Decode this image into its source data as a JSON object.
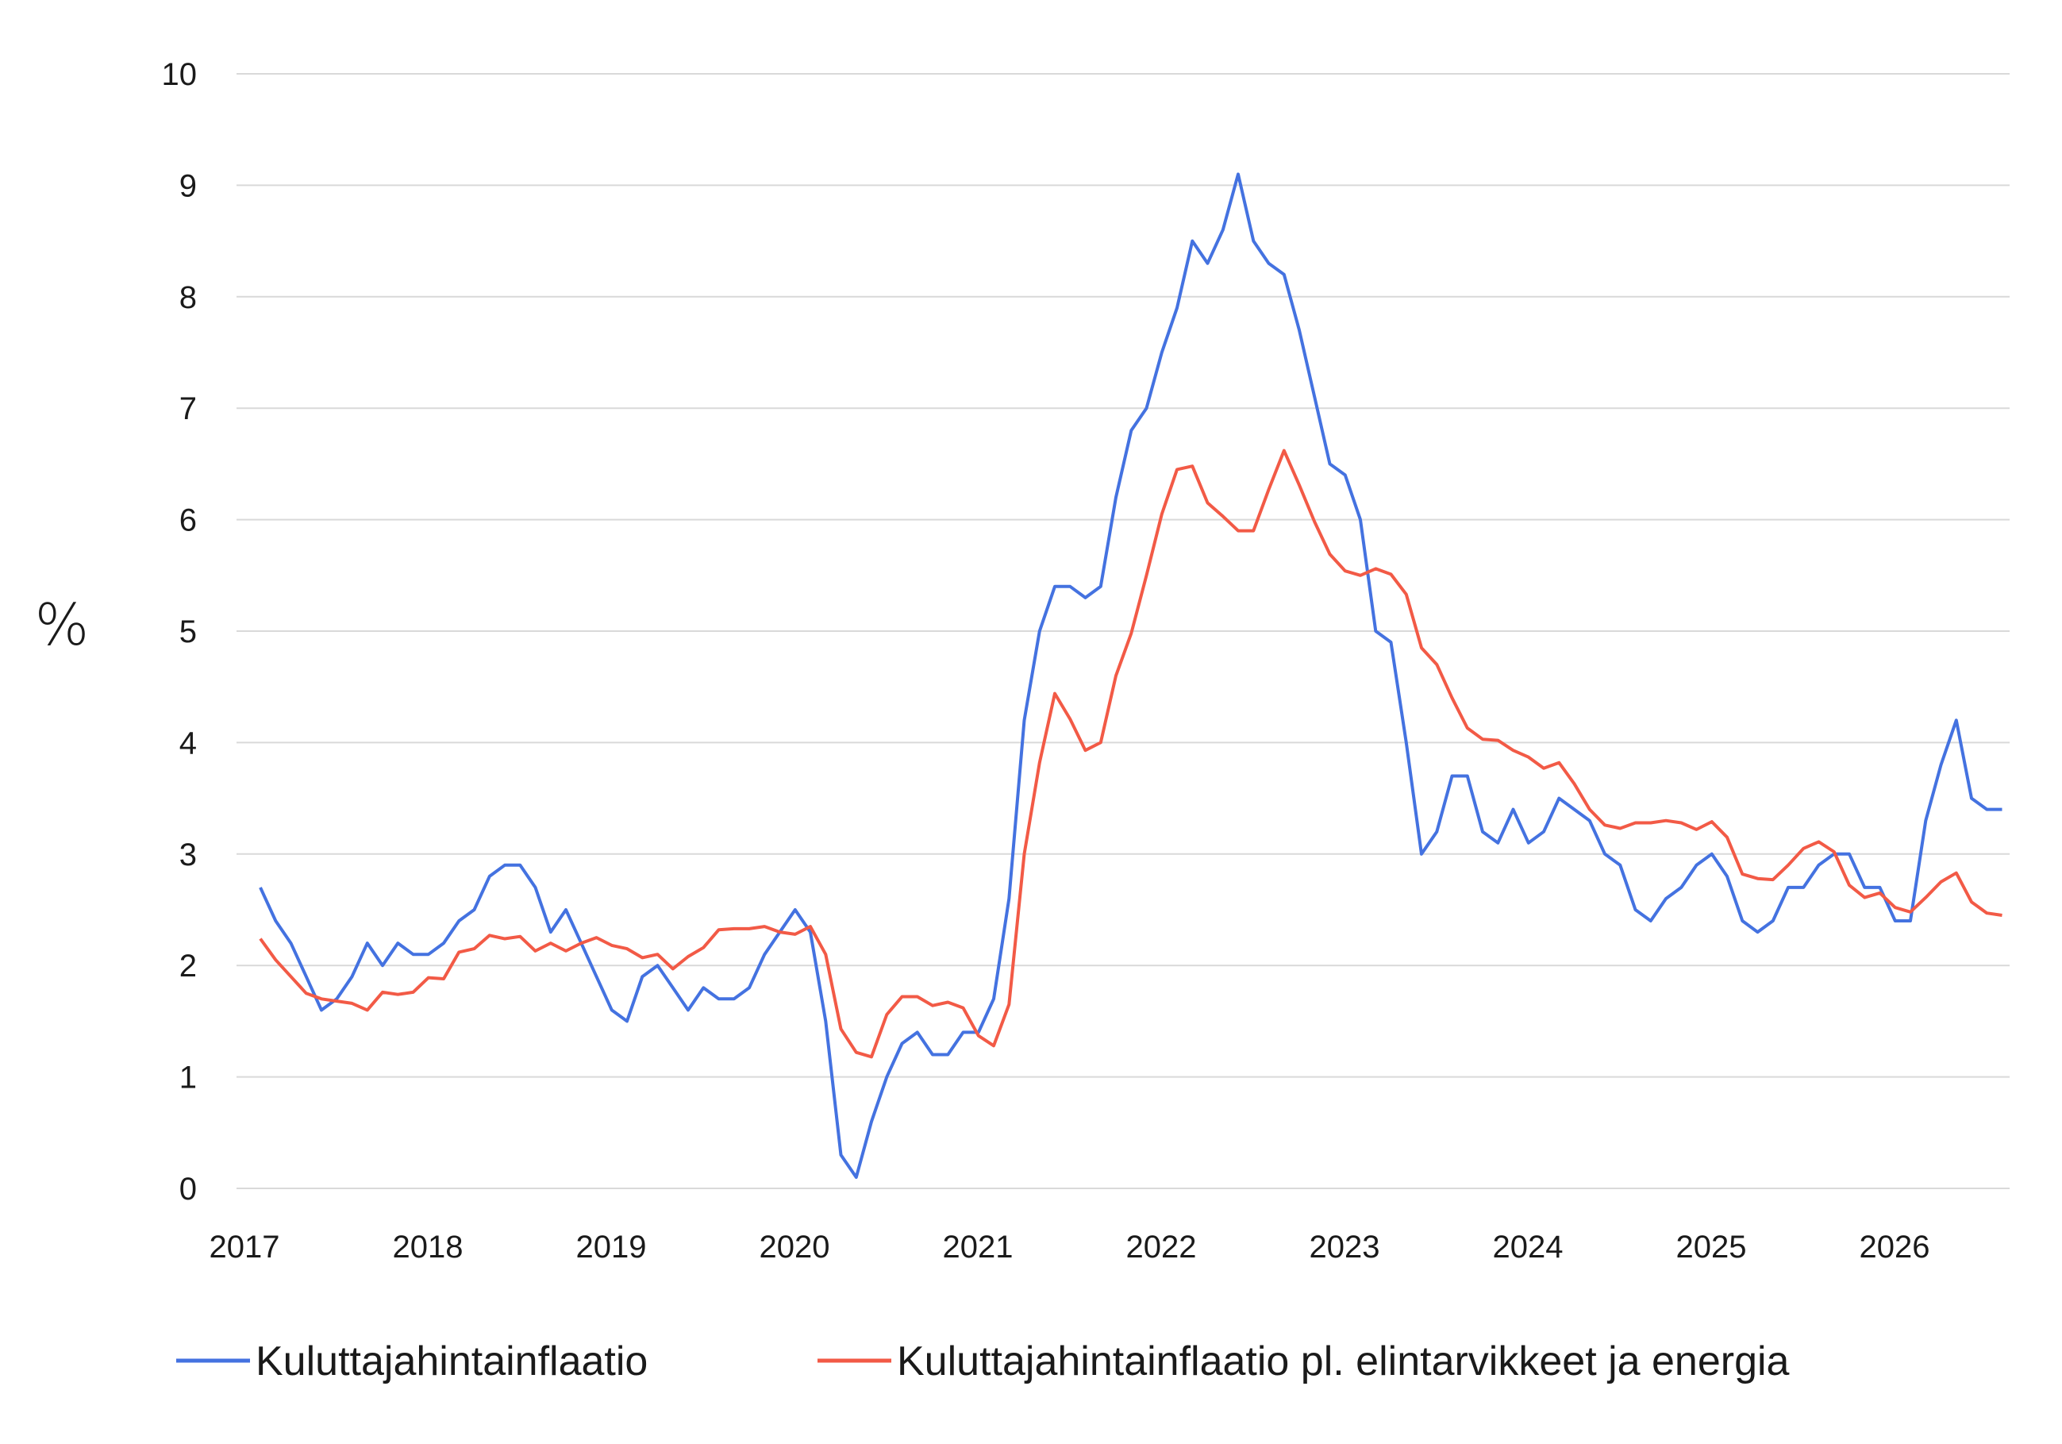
{
  "chart_data": {
    "type": "line",
    "title": "",
    "xlabel": "",
    "ylabel": "%",
    "ylim": [
      0,
      10
    ],
    "yticks": [
      "0",
      "1",
      "2",
      "3",
      "4",
      "5",
      "6",
      "7",
      "8",
      "9",
      "10"
    ],
    "xticks": [
      "2017",
      "2018",
      "2019",
      "2020",
      "2021",
      "2022",
      "2023",
      "2024",
      "2025",
      "2026"
    ],
    "grid": true,
    "legend_position": "bottom",
    "x_start": "2017-01",
    "x_frequency": "monthly",
    "series": [
      {
        "name": "Kuluttajahintainflaatio",
        "color": "#4472E0",
        "values": [
          2.7,
          2.4,
          2.2,
          1.9,
          1.6,
          1.7,
          1.9,
          2.2,
          2.0,
          2.2,
          2.1,
          2.1,
          2.2,
          2.4,
          2.5,
          2.8,
          2.9,
          2.9,
          2.7,
          2.3,
          2.5,
          2.2,
          1.9,
          1.6,
          1.5,
          1.9,
          2.0,
          1.8,
          1.6,
          1.8,
          1.7,
          1.7,
          1.8,
          2.1,
          2.3,
          2.5,
          2.3,
          1.5,
          0.3,
          0.1,
          0.6,
          1.0,
          1.3,
          1.4,
          1.2,
          1.2,
          1.4,
          1.4,
          1.7,
          2.6,
          4.2,
          5.0,
          5.4,
          5.4,
          5.3,
          5.4,
          6.2,
          6.8,
          7.0,
          7.5,
          7.9,
          8.5,
          8.3,
          8.6,
          9.1,
          8.5,
          8.3,
          8.2,
          7.7,
          7.1,
          6.5,
          6.4,
          6.0,
          5.0,
          4.9,
          4.0,
          3.0,
          3.2,
          3.7,
          3.7,
          3.2,
          3.1,
          3.4,
          3.1,
          3.2,
          3.5,
          3.4,
          3.3,
          3.0,
          2.9,
          2.5,
          2.4,
          2.6,
          2.7,
          2.9,
          3.0,
          2.8,
          2.4,
          2.3,
          2.4,
          2.7,
          2.7,
          2.9,
          3.0,
          3.0,
          2.7,
          2.7,
          2.4,
          2.4,
          3.3,
          3.8,
          4.2,
          3.5,
          3.4,
          3.4
        ]
      },
      {
        "name": "Kuluttajahintainflaatio pl. elintarvikkeet ja energia",
        "color": "#F25A46",
        "values": [
          2.24,
          2.05,
          1.9,
          1.75,
          1.7,
          1.68,
          1.66,
          1.6,
          1.76,
          1.74,
          1.76,
          1.89,
          1.88,
          2.12,
          2.15,
          2.27,
          2.24,
          2.26,
          2.13,
          2.2,
          2.13,
          2.2,
          2.25,
          2.18,
          2.15,
          2.07,
          2.1,
          1.97,
          2.08,
          2.16,
          2.32,
          2.33,
          2.33,
          2.35,
          2.3,
          2.28,
          2.35,
          2.1,
          1.43,
          1.22,
          1.18,
          1.56,
          1.72,
          1.72,
          1.64,
          1.67,
          1.62,
          1.37,
          1.28,
          1.65,
          3.0,
          3.82,
          4.44,
          4.21,
          3.93,
          4.0,
          4.6,
          4.98,
          5.5,
          6.05,
          6.45,
          6.48,
          6.15,
          6.03,
          5.9,
          5.9,
          6.27,
          6.62,
          6.31,
          5.98,
          5.69,
          5.54,
          5.5,
          5.56,
          5.51,
          5.33,
          4.85,
          4.7,
          4.4,
          4.13,
          4.03,
          4.02,
          3.93,
          3.87,
          3.77,
          3.82,
          3.63,
          3.4,
          3.26,
          3.23,
          3.28,
          3.28,
          3.3,
          3.28,
          3.22,
          3.29,
          3.15,
          2.82,
          2.78,
          2.77,
          2.9,
          3.05,
          3.11,
          3.02,
          2.72,
          2.61,
          2.65,
          2.52,
          2.48,
          2.61,
          2.75,
          2.83,
          2.57,
          2.47,
          2.45
        ]
      }
    ]
  },
  "legend": {
    "items": [
      {
        "label": "Kuluttajahintainflaatio",
        "color": "#4472E0"
      },
      {
        "label": "Kuluttajahintainflaatio pl. elintarvikkeet ja energia",
        "color": "#F25A46"
      }
    ]
  }
}
